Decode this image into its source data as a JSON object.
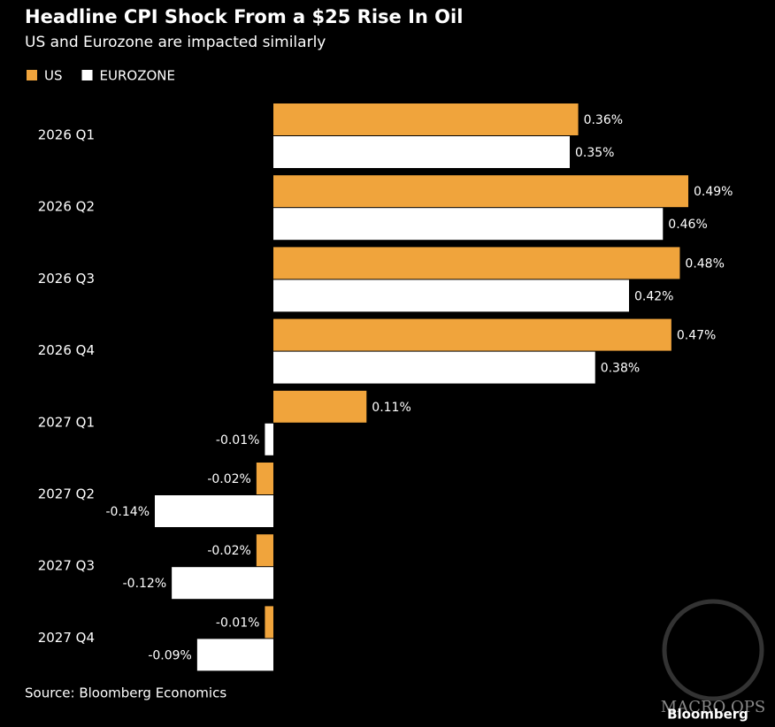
{
  "chart_data": {
    "type": "hbar",
    "title": "Headline CPI Shock From a $25 Rise In Oil",
    "subtitle": "US and Eurozone are impacted similarly",
    "categories": [
      "2026 Q1",
      "2026 Q2",
      "2026 Q3",
      "2026 Q4",
      "2027 Q1",
      "2027 Q2",
      "2027 Q3",
      "2027 Q4"
    ],
    "series": [
      {
        "name": "US",
        "color": "#f0a43c",
        "values": [
          0.36,
          0.49,
          0.48,
          0.47,
          0.11,
          -0.02,
          -0.02,
          -0.01
        ],
        "value_labels": [
          "0.36%",
          "0.49%",
          "0.48%",
          "0.47%",
          "0.11%",
          "-0.02%",
          "-0.02%",
          "-0.01%"
        ]
      },
      {
        "name": "EUROZONE",
        "color": "#ffffff",
        "values": [
          0.35,
          0.46,
          0.42,
          0.38,
          -0.01,
          -0.14,
          -0.12,
          -0.09
        ],
        "value_labels": [
          "0.35%",
          "0.46%",
          "0.42%",
          "0.38%",
          "-0.01%",
          "-0.14%",
          "-0.12%",
          "-0.09%"
        ]
      }
    ],
    "source": "Source: Bloomberg Economics",
    "logo": "Bloomberg",
    "watermark": "MACRO OPS"
  }
}
